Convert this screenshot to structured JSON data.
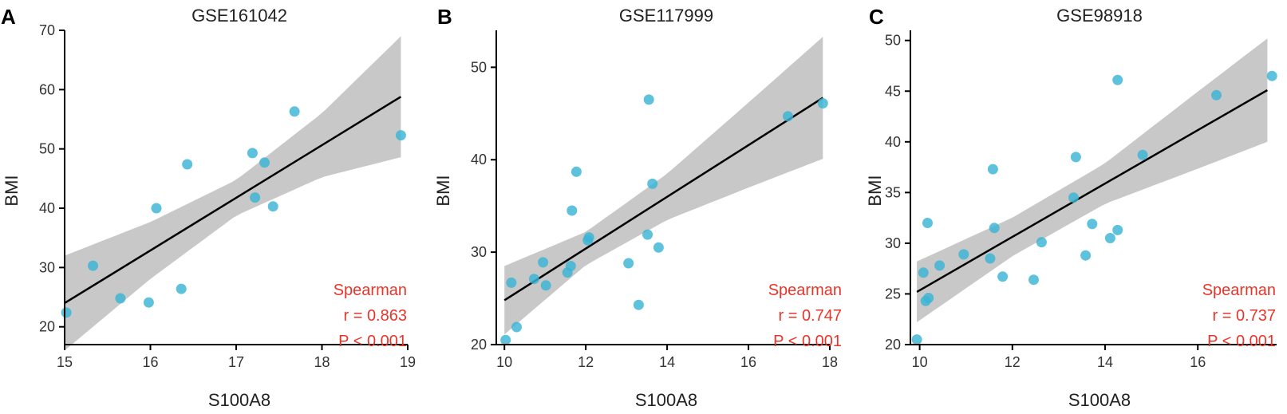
{
  "colors": {
    "point": "#3ab4d6",
    "band": "#c8c8c8",
    "fit": "#000000",
    "stat": "#e8352a"
  },
  "chart_data": [
    {
      "type": "scatter",
      "panel": "A",
      "title": "GSE161042",
      "xlabel": "S100A8",
      "ylabel": "BMI",
      "xlim": [
        15,
        19
      ],
      "ylim": [
        17,
        70
      ],
      "xticks": [
        15,
        16,
        17,
        18,
        19
      ],
      "yticks": [
        20,
        30,
        40,
        50,
        60,
        70
      ],
      "points": [
        [
          15.02,
          22.4
        ],
        [
          15.33,
          30.3
        ],
        [
          15.65,
          24.8
        ],
        [
          15.98,
          24.1
        ],
        [
          16.07,
          40.0
        ],
        [
          16.36,
          26.4
        ],
        [
          16.43,
          47.4
        ],
        [
          17.19,
          49.3
        ],
        [
          17.22,
          41.8
        ],
        [
          17.33,
          47.7
        ],
        [
          17.43,
          40.3
        ],
        [
          17.68,
          56.3
        ],
        [
          18.92,
          52.3
        ]
      ],
      "fit": {
        "x0": 15.0,
        "y0": 24.0,
        "x1": 18.92,
        "y1": 58.8
      },
      "band": {
        "x": [
          15.0,
          16.0,
          17.0,
          18.0,
          18.92
        ],
        "half_width": [
          8.0,
          4.8,
          3.0,
          5.4,
          10.2
        ]
      },
      "stats": {
        "method": "Spearman",
        "r": "r = 0.863",
        "p": "P < 0.001"
      }
    },
    {
      "type": "scatter",
      "panel": "B",
      "title": "GSE117999",
      "xlabel": "S100A8",
      "ylabel": "BMI",
      "xlim": [
        9.8,
        18.0
      ],
      "ylim": [
        20,
        54
      ],
      "xticks": [
        10,
        12,
        14,
        16,
        18
      ],
      "yticks": [
        20,
        30,
        40,
        50
      ],
      "points": [
        [
          10.03,
          20.5
        ],
        [
          10.17,
          26.7
        ],
        [
          10.3,
          21.9
        ],
        [
          10.73,
          27.1
        ],
        [
          10.95,
          28.9
        ],
        [
          11.02,
          26.4
        ],
        [
          11.55,
          27.8
        ],
        [
          11.63,
          28.5
        ],
        [
          11.66,
          34.5
        ],
        [
          11.77,
          38.7
        ],
        [
          12.05,
          31.3
        ],
        [
          12.08,
          31.6
        ],
        [
          13.05,
          28.8
        ],
        [
          13.3,
          24.3
        ],
        [
          13.52,
          31.9
        ],
        [
          13.55,
          46.5
        ],
        [
          13.64,
          37.4
        ],
        [
          13.79,
          30.5
        ],
        [
          16.97,
          44.7
        ],
        [
          17.83,
          46.1
        ]
      ],
      "fit": {
        "x0": 10.0,
        "y0": 24.8,
        "x1": 17.83,
        "y1": 46.7
      },
      "band": {
        "x": [
          10.0,
          12.0,
          14.0,
          16.0,
          17.83
        ],
        "half_width": [
          3.7,
          1.8,
          2.5,
          4.6,
          6.6
        ]
      },
      "stats": {
        "method": "Spearman",
        "r": "r = 0.747",
        "p": "P < 0.001"
      }
    },
    {
      "type": "scatter",
      "panel": "C",
      "title": "GSE98918",
      "xlabel": "S100A8",
      "ylabel": "BMI",
      "xlim": [
        9.8,
        17.7
      ],
      "ylim": [
        20,
        51
      ],
      "xticks": [
        10,
        12,
        14,
        16
      ],
      "yticks": [
        20,
        25,
        30,
        35,
        40,
        45,
        50
      ],
      "points": [
        [
          9.94,
          20.5
        ],
        [
          10.08,
          27.1
        ],
        [
          10.13,
          24.3
        ],
        [
          10.19,
          24.6
        ],
        [
          10.17,
          32.0
        ],
        [
          10.43,
          27.8
        ],
        [
          10.95,
          28.9
        ],
        [
          11.52,
          28.5
        ],
        [
          11.58,
          37.3
        ],
        [
          11.61,
          31.5
        ],
        [
          11.79,
          26.7
        ],
        [
          12.46,
          26.4
        ],
        [
          12.63,
          30.1
        ],
        [
          13.32,
          34.5
        ],
        [
          13.37,
          38.5
        ],
        [
          13.58,
          28.8
        ],
        [
          13.72,
          31.9
        ],
        [
          14.11,
          30.5
        ],
        [
          14.27,
          46.1
        ],
        [
          14.27,
          31.3
        ],
        [
          14.81,
          38.7
        ],
        [
          16.4,
          44.6
        ],
        [
          17.6,
          46.5
        ]
      ],
      "fit": {
        "x0": 9.94,
        "y0": 25.2,
        "x1": 17.5,
        "y1": 45.1
      },
      "band": {
        "x": [
          9.94,
          12.0,
          14.0,
          16.0,
          17.5
        ],
        "half_width": [
          3.0,
          1.9,
          2.0,
          3.8,
          5.1
        ]
      },
      "stats": {
        "method": "Spearman",
        "r": "r = 0.737",
        "p": "P < 0.001"
      }
    }
  ]
}
